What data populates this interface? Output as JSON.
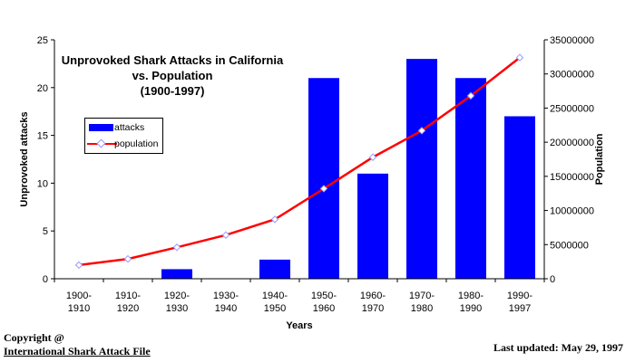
{
  "chart_data": {
    "type": "bar",
    "title": [
      "Unprovoked Shark Attacks in California",
      "vs. Population",
      "(1900-1997)"
    ],
    "categories": [
      [
        "1900-",
        "1910"
      ],
      [
        "1910-",
        "1920"
      ],
      [
        "1920-",
        "1930"
      ],
      [
        "1930-",
        "1940"
      ],
      [
        "1940-",
        "1950"
      ],
      [
        "1950-",
        "1960"
      ],
      [
        "1960-",
        "1970"
      ],
      [
        "1970-",
        "1980"
      ],
      [
        "1980-",
        "1990"
      ],
      [
        "1990-",
        "1997"
      ]
    ],
    "xlabel": "Years",
    "ylabel": "Unprovoked attacks",
    "y2label": "Population",
    "ylim": [
      0,
      25
    ],
    "y2lim": [
      0,
      35000000
    ],
    "yticks": [
      0,
      5,
      10,
      15,
      20,
      25
    ],
    "y2ticks": [
      0,
      5000000,
      10000000,
      15000000,
      20000000,
      25000000,
      30000000,
      35000000
    ],
    "legend_placement": "left",
    "series": [
      {
        "name": "attacks",
        "type": "bar",
        "axis": "left",
        "color": "#0000FF",
        "values": [
          0,
          0,
          1,
          0,
          2,
          21,
          11,
          23,
          21,
          17
        ]
      },
      {
        "name": "population",
        "type": "line",
        "axis": "right",
        "color": "#FF0000",
        "values": [
          2000000,
          2900000,
          4600000,
          6400000,
          8700000,
          13200000,
          17800000,
          21700000,
          26800000,
          32400000
        ]
      }
    ],
    "grid": false
  },
  "footer": {
    "copyright_line1": "Copyright @",
    "copyright_line2": "International Shark Attack File",
    "last_updated": "Last updated: May 29, 1997"
  }
}
